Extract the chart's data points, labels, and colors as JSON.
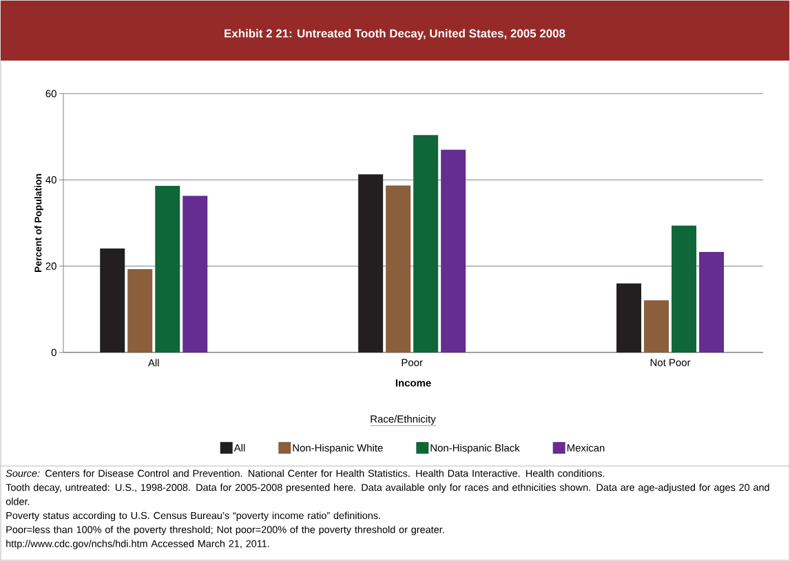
{
  "chart_data": {
    "type": "bar",
    "title": "Exhibit 2 21: Untreated Tooth Decay, United States, 2005 2008",
    "xlabel": "Income",
    "ylabel": "Percent of Population",
    "legend_title": "Race/Ethnicity",
    "categories": [
      "All",
      "Poor",
      "Not Poor"
    ],
    "series": [
      {
        "name": "All",
        "color": "#231f20",
        "values": [
          24.1,
          41.3,
          16.0
        ]
      },
      {
        "name": "Non-Hispanic White",
        "color": "#8b5e3c",
        "values": [
          19.3,
          38.7,
          12.1
        ]
      },
      {
        "name": "Non-Hispanic Black",
        "color": "#0f6638",
        "values": [
          38.6,
          50.4,
          29.4
        ]
      },
      {
        "name": "Mexican",
        "color": "#652d90",
        "values": [
          36.3,
          47.0,
          23.3
        ]
      }
    ],
    "ylim": [
      0,
      60
    ],
    "yticks": [
      0,
      20,
      40,
      60
    ],
    "grid": "y",
    "legend": "bottom",
    "annotations": [
      "*Source:* Centers for Disease Control and Prevention. National Center for Health Statistics. Health Data Interactive. Health conditions.",
      "Tooth decay, untreated: U.S., 1998-2008. Data for 2005-2008 presented here. Data available only for races and ethnicities shown. Data are age-adjusted for ages 20 and older.",
      "Poverty status according to U.S. Census Bureau’s “poverty income ratio” definitions.",
      "Poor=less than 100% of the poverty threshold; Not poor=200% of the poverty threshold or greater.",
      "http://www.cdc.gov/nchs/hdi.htm  Accessed March 21, 2011."
    ]
  }
}
